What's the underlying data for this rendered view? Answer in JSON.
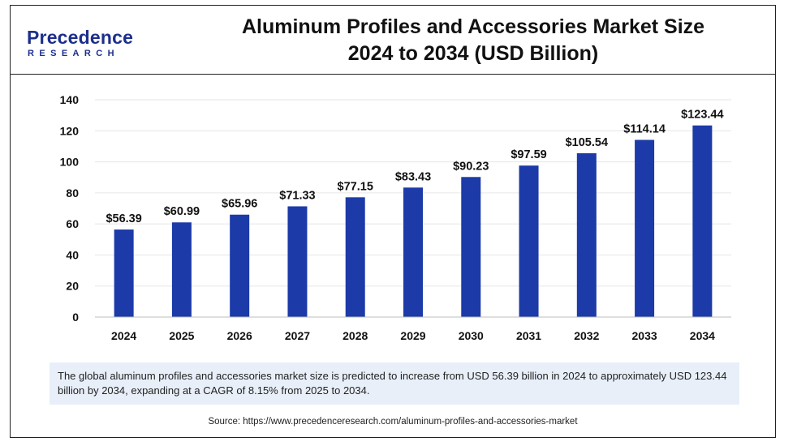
{
  "logo": {
    "name_line": "Precedence",
    "sub_line": "RESEARCH"
  },
  "title_line1": "Aluminum Profiles and Accessories Market Size",
  "title_line2": "2024 to 2034 (USD Billion)",
  "summary": "The global aluminum profiles and accessories market size is predicted to increase from USD 56.39 billion in 2024 to approximately USD 123.44 billion by 2034, expanding at a CAGR of 8.15% from 2025 to 2034.",
  "source": "Source: https://www.precedenceresearch.com/aluminum-profiles-and-accessories-market",
  "colors": {
    "bar": "#1c3aa8",
    "logo": "#1c2f8c",
    "summary_bg": "#e8eff9"
  },
  "chart_data": {
    "type": "bar",
    "title": "Aluminum Profiles and Accessories Market Size 2024 to 2034 (USD Billion)",
    "categories": [
      "2024",
      "2025",
      "2026",
      "2027",
      "2028",
      "2029",
      "2030",
      "2031",
      "2032",
      "2033",
      "2034"
    ],
    "values": [
      56.39,
      60.99,
      65.96,
      71.33,
      77.15,
      83.43,
      90.23,
      97.59,
      105.54,
      114.14,
      123.44
    ],
    "data_labels": [
      "$56.39",
      "$60.99",
      "$65.96",
      "$71.33",
      "$77.15",
      "$83.43",
      "$90.23",
      "$97.59",
      "$105.54",
      "$114.14",
      "$123.44"
    ],
    "yticks": [
      0,
      20,
      40,
      60,
      80,
      100,
      120,
      140
    ],
    "ylim": [
      0,
      140
    ],
    "xlabel": "",
    "ylabel": "",
    "grid": true,
    "legend": "none"
  }
}
